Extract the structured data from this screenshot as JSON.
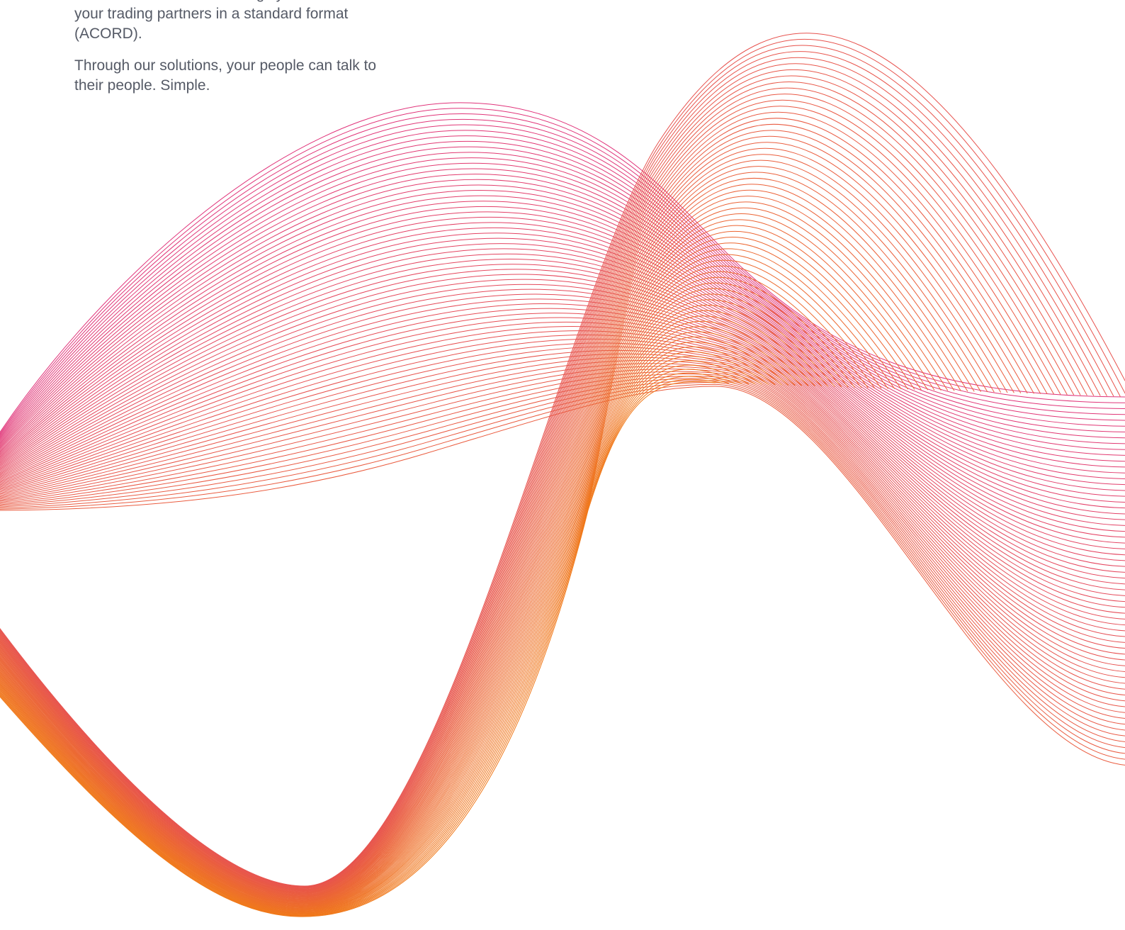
{
  "copy": {
    "paragraph_1": "and documents from existing systems to all your trading partners in a standard format (ACORD).",
    "paragraph_2": "Through our solutions, your people can talk to their people. Simple."
  },
  "colors": {
    "text": "#555a66",
    "wave_pink": "#e0337a",
    "wave_orange": "#f07818",
    "background": "#ffffff"
  }
}
